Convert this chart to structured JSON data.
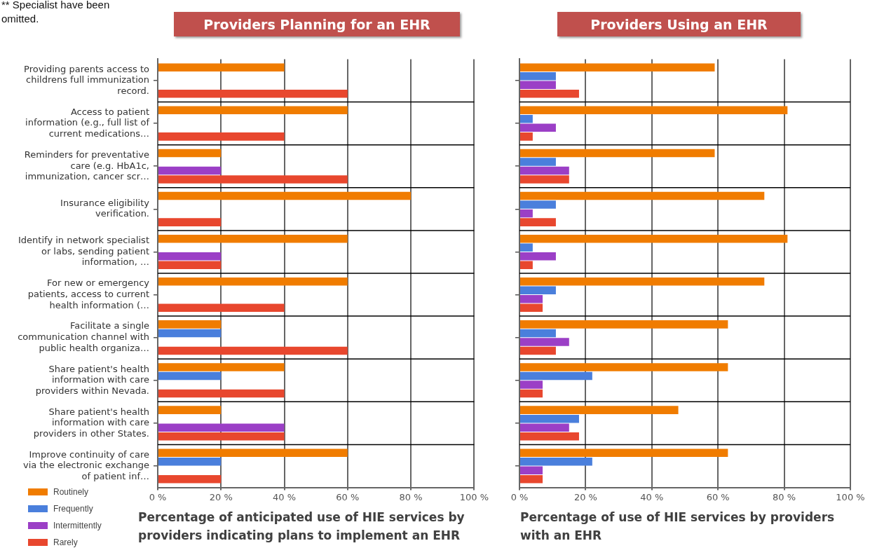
{
  "chart_data": [
    {
      "type": "bar",
      "orientation": "horizontal",
      "title": "Providers Planning for an EHR",
      "xlabel": "Percentage of anticipated use of HIE services by providers indicating plans to implement an EHR",
      "categories": [
        "Providing parents access to childrens full immunization record.",
        "Access to patient information (e.g., full list of current medications…",
        "Reminders for preventative care (e.g. HbA1c, immunization, cancer scr…",
        "Insurance eligibility verification.",
        "Identify in network specialist or labs, sending patient information, …",
        "For new or emergency patients, access to current health information (…",
        "Facilitate a single communication channel with public health organiza…",
        "Share patient's health information with care providers within Nevada.",
        "Share patient's health information with care providers in other States.",
        "Improve continuity of care via the electronic exchange of patient inf…"
      ],
      "series": [
        {
          "name": "Routinely",
          "color": "#f07c00",
          "values": [
            40,
            60,
            20,
            80,
            60,
            60,
            20,
            40,
            20,
            60
          ]
        },
        {
          "name": "Frequently",
          "color": "#4a7fdc",
          "values": [
            0,
            0,
            0,
            0,
            0,
            0,
            20,
            20,
            0,
            20
          ]
        },
        {
          "name": "Intermittently",
          "color": "#9b3fc6",
          "values": [
            0,
            0,
            20,
            0,
            20,
            0,
            0,
            0,
            40,
            0
          ]
        },
        {
          "name": "Rarely",
          "color": "#e8472e",
          "values": [
            60,
            40,
            60,
            20,
            20,
            40,
            60,
            40,
            40,
            20
          ]
        }
      ],
      "xlim": [
        0,
        100
      ],
      "xticks": [
        {
          "value": 0,
          "label": "0 %"
        },
        {
          "value": 20,
          "label": "20 %"
        },
        {
          "value": 40,
          "label": "40 %"
        },
        {
          "value": 60,
          "label": "60 %"
        },
        {
          "value": 80,
          "label": "80 %"
        },
        {
          "value": 100,
          "label": "100 %"
        }
      ],
      "grid": true,
      "legend": "bottom left",
      "annotations": [
        "** Specialist have been omitted."
      ]
    },
    {
      "type": "bar",
      "orientation": "horizontal",
      "title": "Providers Using an EHR",
      "xlabel": "Percentage of use of HIE services by providers with an EHR",
      "categories": [
        null,
        null,
        null,
        null,
        null,
        null,
        null,
        null,
        null,
        null
      ],
      "series": [
        {
          "color": "#f07c00",
          "values": [
            59,
            81,
            59,
            74,
            81,
            74,
            63,
            63,
            48,
            63
          ]
        },
        {
          "color": "#4a7fdc",
          "values": [
            11,
            4,
            11,
            11,
            4,
            11,
            11,
            22,
            18,
            22
          ]
        },
        {
          "color": "#9b3fc6",
          "values": [
            11,
            11,
            15,
            4,
            11,
            7,
            15,
            7,
            15,
            7
          ]
        },
        {
          "color": "#e8472e",
          "values": [
            18,
            4,
            15,
            11,
            4,
            7,
            11,
            7,
            18,
            7
          ]
        }
      ],
      "xlim": [
        0,
        100
      ],
      "xticks": [
        {
          "value": 0,
          "label": "0 %"
        },
        {
          "value": 20,
          "label": "20 %"
        },
        {
          "value": 40,
          "label": "40 %"
        },
        {
          "value": 60,
          "label": "60 %"
        },
        {
          "value": 80,
          "label": "80 %"
        },
        {
          "value": 100,
          "label": "100 %"
        }
      ],
      "grid": true,
      "tick_labels": "x"
    }
  ]
}
